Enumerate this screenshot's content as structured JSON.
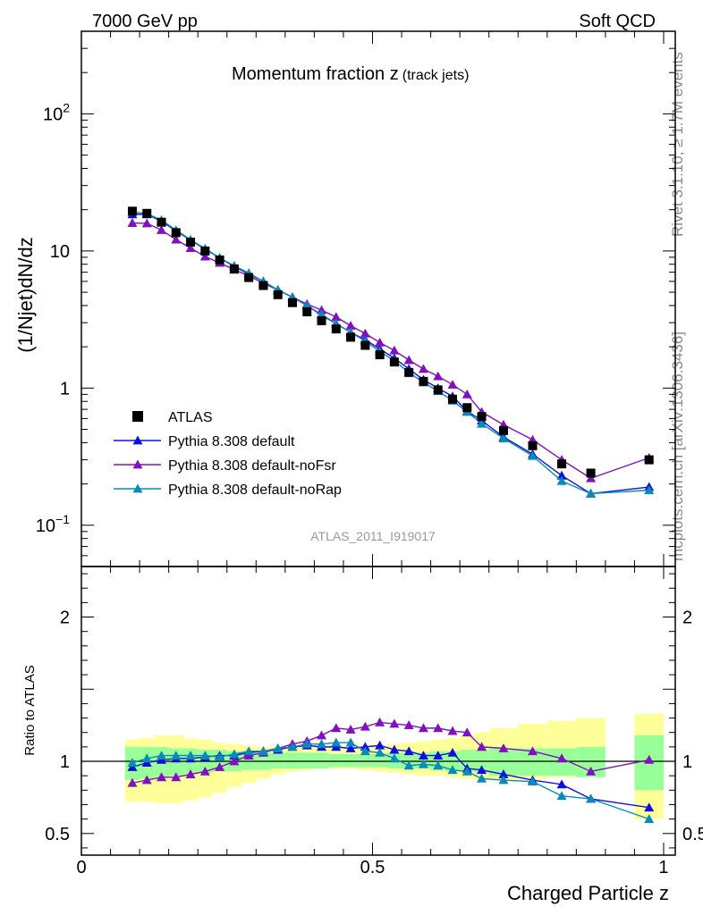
{
  "header": {
    "left": "7000 GeV pp",
    "right": "Soft QCD"
  },
  "side": {
    "top": "Rivet 3.1.10, ≥ 1.7M events",
    "bottom": "mcplots.cern.ch [arXiv:1306.3436]"
  },
  "chart_data": [
    {
      "type": "scatter",
      "panel": "main",
      "title_main": "Momentum fraction z",
      "title_sub": "(track jets)",
      "watermark": "ATLAS_2011_I919017",
      "ylabel": "(1/Njet)dN/dz",
      "yscale": "log",
      "ylim": [
        0.05,
        400
      ],
      "xlim": [
        0,
        1.02
      ],
      "yticks": [
        {
          "v": 0.1,
          "base": "10",
          "exp": "−1"
        },
        {
          "v": 1,
          "base": "1",
          "exp": ""
        },
        {
          "v": 10,
          "base": "10",
          "exp": ""
        },
        {
          "v": 100,
          "base": "10",
          "exp": "2"
        }
      ],
      "legend_placement": "bottom-left",
      "series": [
        {
          "name": "ATLAS",
          "style": "data",
          "color": "#000000",
          "marker": "square",
          "x": [
            0.0875,
            0.1125,
            0.1375,
            0.1625,
            0.1875,
            0.2125,
            0.2375,
            0.2625,
            0.2875,
            0.3125,
            0.3375,
            0.3625,
            0.3875,
            0.4125,
            0.4375,
            0.4625,
            0.4875,
            0.5125,
            0.5375,
            0.5625,
            0.5875,
            0.6125,
            0.6375,
            0.6625,
            0.6875,
            0.725,
            0.775,
            0.825,
            0.875,
            0.975
          ],
          "values": [
            19.5,
            18.8,
            16.2,
            13.6,
            11.6,
            10.0,
            8.6,
            7.4,
            6.4,
            5.6,
            4.8,
            4.2,
            3.6,
            3.1,
            2.7,
            2.35,
            2.05,
            1.75,
            1.55,
            1.3,
            1.12,
            0.97,
            0.83,
            0.72,
            0.62,
            0.49,
            0.38,
            0.28,
            0.24,
            0.3
          ]
        },
        {
          "name": "Pythia 8.308 default",
          "style": "mc",
          "color": "#1010dd",
          "marker": "triangle",
          "x": [
            0.0875,
            0.1125,
            0.1375,
            0.1625,
            0.1875,
            0.2125,
            0.2375,
            0.2625,
            0.2875,
            0.3125,
            0.3375,
            0.3625,
            0.3875,
            0.4125,
            0.4375,
            0.4625,
            0.4875,
            0.5125,
            0.5375,
            0.5625,
            0.5875,
            0.6125,
            0.6375,
            0.6625,
            0.6875,
            0.725,
            0.775,
            0.825,
            0.875,
            0.975
          ],
          "values": [
            18.5,
            18.5,
            16.5,
            14.0,
            12.0,
            10.3,
            8.9,
            7.7,
            6.8,
            6.0,
            5.2,
            4.6,
            4.0,
            3.4,
            2.95,
            2.55,
            2.25,
            1.93,
            1.65,
            1.38,
            1.15,
            1.0,
            0.87,
            0.68,
            0.58,
            0.44,
            0.33,
            0.23,
            0.17,
            0.19
          ]
        },
        {
          "name": "Pythia 8.308 default-noFsr",
          "style": "mc",
          "color": "#8010c0",
          "marker": "triangle",
          "x": [
            0.0875,
            0.1125,
            0.1375,
            0.1625,
            0.1875,
            0.2125,
            0.2375,
            0.2625,
            0.2875,
            0.3125,
            0.3375,
            0.3625,
            0.3875,
            0.4125,
            0.4375,
            0.4625,
            0.4875,
            0.5125,
            0.5375,
            0.5625,
            0.5875,
            0.6125,
            0.6375,
            0.6625,
            0.6875,
            0.725,
            0.775,
            0.825,
            0.875,
            0.975
          ],
          "values": [
            16.0,
            15.9,
            14.2,
            12.1,
            10.5,
            9.1,
            8.2,
            7.3,
            6.6,
            5.8,
            5.2,
            4.6,
            4.1,
            3.7,
            3.3,
            2.85,
            2.5,
            2.15,
            1.88,
            1.6,
            1.38,
            1.22,
            1.06,
            0.9,
            0.67,
            0.54,
            0.42,
            0.3,
            0.22,
            0.31
          ]
        },
        {
          "name": "Pythia 8.308 default-noRap",
          "style": "mc",
          "color": "#0a8ab8",
          "marker": "triangle",
          "x": [
            0.0875,
            0.1125,
            0.1375,
            0.1625,
            0.1875,
            0.2125,
            0.2375,
            0.2625,
            0.2875,
            0.3125,
            0.3375,
            0.3625,
            0.3875,
            0.4125,
            0.4375,
            0.4625,
            0.4875,
            0.5125,
            0.5375,
            0.5625,
            0.5875,
            0.6125,
            0.6375,
            0.6625,
            0.6875,
            0.725,
            0.775,
            0.825,
            0.875,
            0.975
          ],
          "values": [
            19.3,
            18.7,
            16.8,
            14.2,
            12.1,
            10.4,
            8.9,
            7.8,
            6.9,
            6.0,
            5.2,
            4.6,
            4.0,
            3.45,
            2.95,
            2.55,
            2.2,
            1.85,
            1.58,
            1.3,
            1.1,
            0.95,
            0.81,
            0.67,
            0.55,
            0.43,
            0.32,
            0.21,
            0.17,
            0.18
          ]
        }
      ]
    },
    {
      "type": "scatter",
      "panel": "ratio",
      "ylabel": "Ratio to ATLAS",
      "xlabel": "Charged Particle z",
      "ylim": [
        0.35,
        2.35
      ],
      "xlim": [
        0,
        1.02
      ],
      "yticks": [
        {
          "v": 0.5,
          "label": "0.5"
        },
        {
          "v": 1,
          "label": "1"
        },
        {
          "v": 2,
          "label": "2"
        }
      ],
      "xticks": [
        {
          "v": 0,
          "label": "0"
        },
        {
          "v": 0.5,
          "label": "0.5"
        },
        {
          "v": 1,
          "label": "1"
        }
      ],
      "uncertainty_bands": {
        "x_lo": [
          0.075,
          0.1,
          0.125,
          0.15,
          0.175,
          0.2,
          0.225,
          0.25,
          0.275,
          0.3,
          0.325,
          0.35,
          0.375,
          0.4,
          0.425,
          0.45,
          0.475,
          0.5,
          0.525,
          0.55,
          0.575,
          0.6,
          0.625,
          0.65,
          0.675,
          0.7,
          0.75,
          0.8,
          0.85,
          0.95
        ],
        "x_hi": [
          0.1,
          0.125,
          0.15,
          0.175,
          0.2,
          0.225,
          0.25,
          0.275,
          0.3,
          0.325,
          0.35,
          0.375,
          0.4,
          0.425,
          0.45,
          0.475,
          0.5,
          0.525,
          0.55,
          0.575,
          0.6,
          0.625,
          0.65,
          0.675,
          0.7,
          0.75,
          0.8,
          0.85,
          0.9,
          1.0
        ],
        "stat_lo": [
          0.87,
          0.88,
          0.89,
          0.9,
          0.91,
          0.92,
          0.93,
          0.93,
          0.94,
          0.94,
          0.95,
          0.95,
          0.95,
          0.95,
          0.96,
          0.96,
          0.96,
          0.96,
          0.95,
          0.95,
          0.95,
          0.94,
          0.93,
          0.93,
          0.92,
          0.9,
          0.9,
          0.9,
          0.89,
          0.8
        ],
        "stat_hi": [
          1.1,
          1.1,
          1.1,
          1.09,
          1.09,
          1.08,
          1.08,
          1.07,
          1.07,
          1.07,
          1.06,
          1.06,
          1.06,
          1.06,
          1.05,
          1.05,
          1.05,
          1.05,
          1.06,
          1.06,
          1.06,
          1.07,
          1.07,
          1.08,
          1.08,
          1.09,
          1.09,
          1.09,
          1.1,
          1.18
        ],
        "total_lo": [
          0.72,
          0.72,
          0.71,
          0.71,
          0.73,
          0.75,
          0.78,
          0.82,
          0.85,
          0.88,
          0.91,
          0.93,
          0.94,
          0.95,
          0.95,
          0.95,
          0.94,
          0.93,
          0.92,
          0.91,
          0.9,
          0.9,
          0.89,
          0.88,
          0.87,
          0.87,
          0.88,
          0.89,
          0.9,
          0.6
        ],
        "total_hi": [
          1.15,
          1.16,
          1.18,
          1.18,
          1.16,
          1.15,
          1.13,
          1.12,
          1.11,
          1.1,
          1.1,
          1.1,
          1.1,
          1.1,
          1.1,
          1.1,
          1.1,
          1.11,
          1.12,
          1.13,
          1.14,
          1.15,
          1.16,
          1.18,
          1.2,
          1.23,
          1.26,
          1.28,
          1.3,
          1.33
        ]
      },
      "series": [
        {
          "name": "Pythia 8.308 default",
          "color": "#1010dd",
          "x": [
            0.0875,
            0.1125,
            0.1375,
            0.1625,
            0.1875,
            0.2125,
            0.2375,
            0.2625,
            0.2875,
            0.3125,
            0.3375,
            0.3625,
            0.3875,
            0.4125,
            0.4375,
            0.4625,
            0.4875,
            0.5125,
            0.5375,
            0.5625,
            0.5875,
            0.6125,
            0.6375,
            0.6625,
            0.6875,
            0.725,
            0.775,
            0.825,
            0.875,
            0.975
          ],
          "values": [
            0.96,
            0.99,
            1.01,
            1.02,
            1.02,
            1.03,
            1.04,
            1.04,
            1.06,
            1.07,
            1.08,
            1.1,
            1.11,
            1.1,
            1.1,
            1.09,
            1.1,
            1.11,
            1.08,
            1.07,
            1.04,
            1.04,
            1.06,
            0.95,
            0.94,
            0.91,
            0.87,
            0.84,
            0.74,
            0.68
          ]
        },
        {
          "name": "Pythia 8.308 default-noFsr",
          "color": "#8010c0",
          "x": [
            0.0875,
            0.1125,
            0.1375,
            0.1625,
            0.1875,
            0.2125,
            0.2375,
            0.2625,
            0.2875,
            0.3125,
            0.3375,
            0.3625,
            0.3875,
            0.4125,
            0.4375,
            0.4625,
            0.4875,
            0.5125,
            0.5375,
            0.5625,
            0.5875,
            0.6125,
            0.6375,
            0.6625,
            0.6875,
            0.725,
            0.775,
            0.825,
            0.875,
            0.975
          ],
          "values": [
            0.85,
            0.87,
            0.89,
            0.89,
            0.91,
            0.93,
            0.96,
            1.0,
            1.04,
            1.06,
            1.09,
            1.12,
            1.14,
            1.18,
            1.23,
            1.22,
            1.24,
            1.27,
            1.26,
            1.25,
            1.23,
            1.23,
            1.21,
            1.2,
            1.1,
            1.09,
            1.07,
            1.02,
            0.93,
            1.01
          ]
        },
        {
          "name": "Pythia 8.308 default-noRap",
          "color": "#0a8ab8",
          "x": [
            0.0875,
            0.1125,
            0.1375,
            0.1625,
            0.1875,
            0.2125,
            0.2375,
            0.2625,
            0.2875,
            0.3125,
            0.3375,
            0.3625,
            0.3875,
            0.4125,
            0.4375,
            0.4625,
            0.4875,
            0.5125,
            0.5375,
            0.5625,
            0.5875,
            0.6125,
            0.6375,
            0.6625,
            0.6875,
            0.725,
            0.775,
            0.825,
            0.875,
            0.975
          ],
          "values": [
            0.99,
            1.02,
            1.04,
            1.04,
            1.04,
            1.04,
            1.03,
            1.05,
            1.07,
            1.07,
            1.09,
            1.1,
            1.12,
            1.12,
            1.13,
            1.13,
            1.07,
            1.06,
            1.02,
            0.97,
            0.98,
            0.97,
            0.94,
            0.93,
            0.88,
            0.87,
            0.86,
            0.76,
            0.74,
            0.6
          ]
        }
      ]
    }
  ]
}
